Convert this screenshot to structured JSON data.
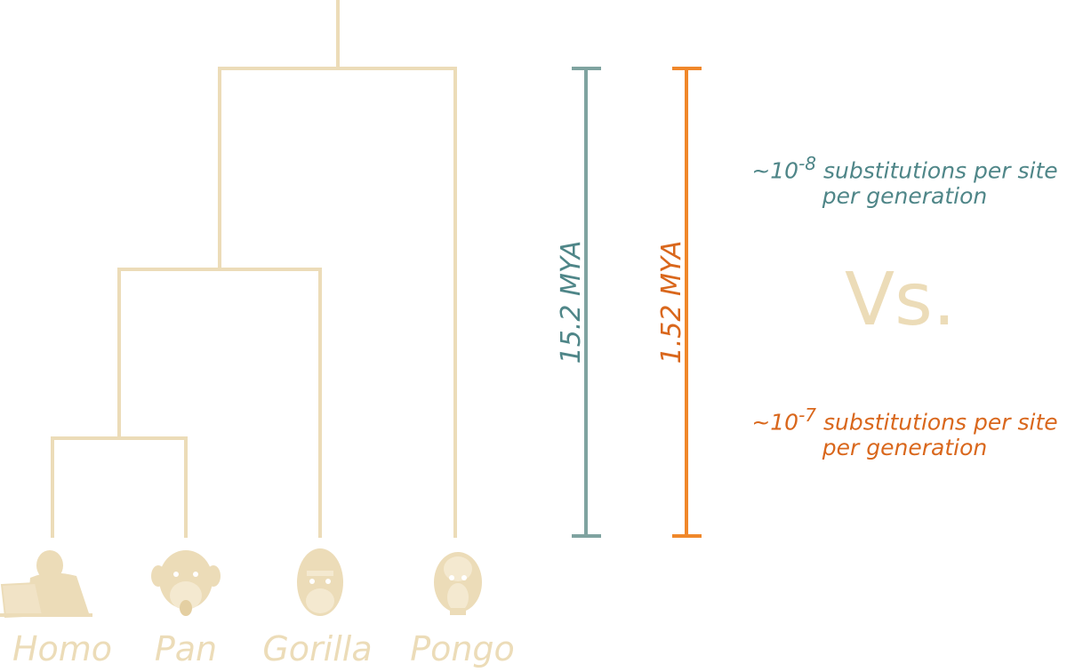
{
  "taxa": [
    "Homo",
    "Pan",
    "Gorilla",
    "Pongo"
  ],
  "scales": [
    {
      "label": "15.2 MYA",
      "color": "#6e9a99"
    },
    {
      "label": "1.52 MYA",
      "color": "#e8761e"
    }
  ],
  "rates": [
    {
      "prefix": "~10",
      "exponent": "-8",
      "line1": " substitutions per site",
      "line2": "per generation",
      "color": "#4f8688"
    },
    {
      "prefix": "~10",
      "exponent": "-7",
      "line1": " substitutions per site",
      "line2": "per generation",
      "color": "#d9671c"
    }
  ],
  "vs_label": "Vs.",
  "colors": {
    "tree": "#ecdcb8"
  },
  "icons": [
    "human-at-laptop-icon",
    "chimpanzee-icon",
    "gorilla-icon",
    "orangutan-icon"
  ]
}
